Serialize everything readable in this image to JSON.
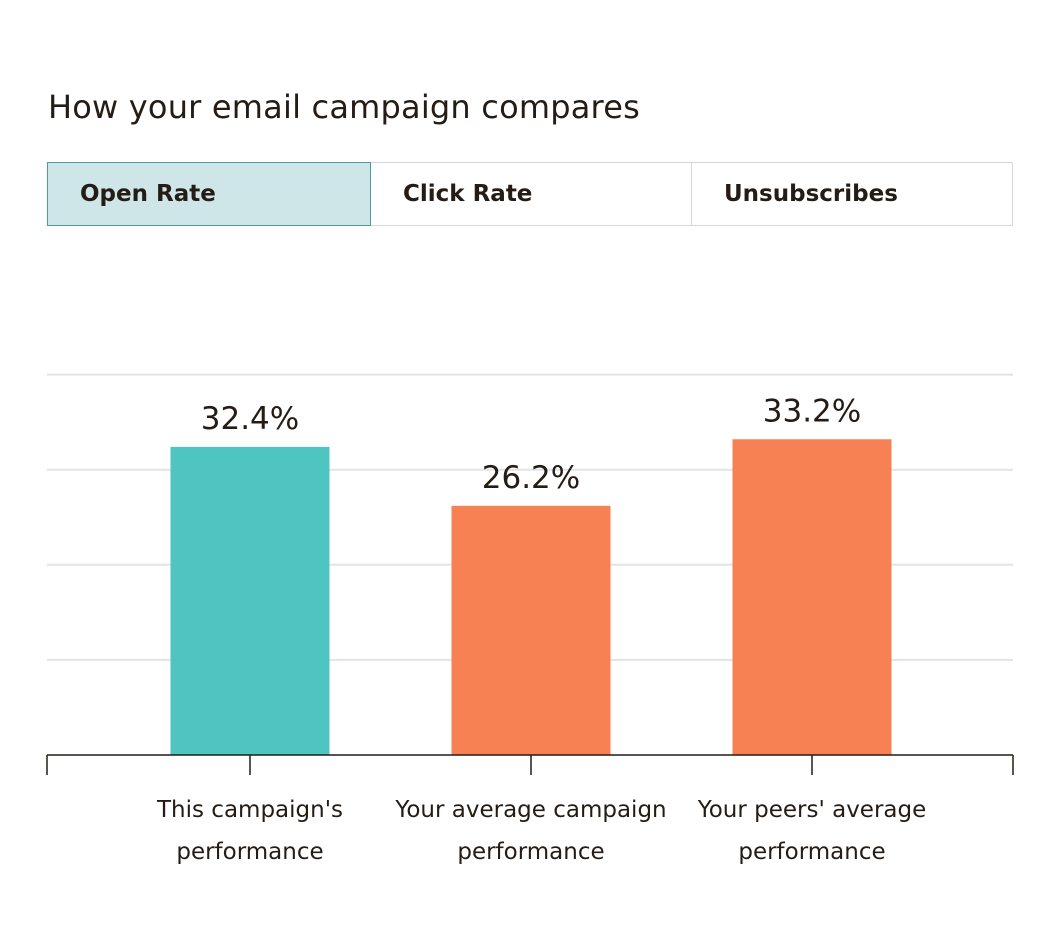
{
  "heading": "How your email campaign compares",
  "tabs": [
    {
      "label": "Open Rate",
      "active": true
    },
    {
      "label": "Click Rate",
      "active": false
    },
    {
      "label": "Unsubscribes",
      "active": false
    }
  ],
  "colors": {
    "this_campaign": "#4fc5c2",
    "comparison": "#f78153",
    "active_tab_bg": "#cfe6e8",
    "active_tab_border": "#4b9aa6",
    "gridline": "#e3e3e3",
    "axis": "#241c15"
  },
  "chart_data": {
    "type": "bar",
    "categories": [
      [
        "This campaign's",
        "performance"
      ],
      [
        "Your average campaign",
        "performance"
      ],
      [
        "Your peers' average",
        "performance"
      ]
    ],
    "values": [
      32.4,
      26.2,
      33.2
    ],
    "value_labels": [
      "32.4%",
      "26.2%",
      "33.2%"
    ],
    "bar_colors": [
      "#4fc5c2",
      "#f78153",
      "#f78153"
    ],
    "ylim": [
      0,
      40
    ],
    "grid": true,
    "title": "",
    "xlabel": "",
    "ylabel": ""
  }
}
